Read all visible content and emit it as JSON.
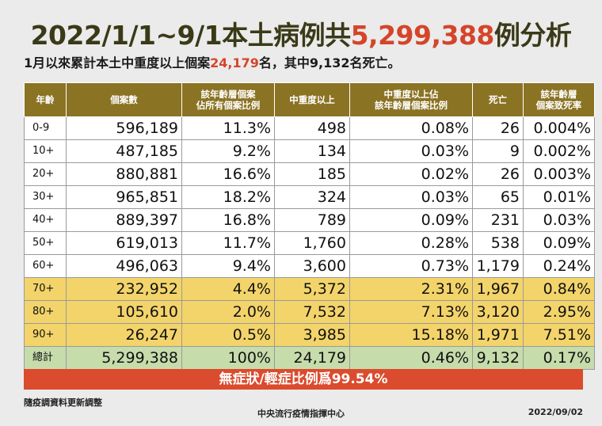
{
  "title": {
    "prefix": "2022/1/1~9/1本土病例共",
    "number": "5,299,388",
    "suffix": "例分析"
  },
  "subtitle": {
    "prefix": "1月以來累計本土中重度以上個案",
    "number": "24,179",
    "suffix": "名，其中9,132名死亡。"
  },
  "table": {
    "headers": [
      [
        "年齡"
      ],
      [
        "個案數"
      ],
      [
        "該年齡層個案",
        "佔所有個案比例"
      ],
      [
        "中重度以上"
      ],
      [
        "中重度以上佔",
        "該年齡層個案比例"
      ],
      [
        "死亡"
      ],
      [
        "該年齡層",
        "個案致死率"
      ]
    ],
    "rows": [
      {
        "style": "white",
        "cells": [
          "0-9",
          "596,189",
          "11.3%",
          "498",
          "0.08%",
          "26",
          "0.004%"
        ]
      },
      {
        "style": "white",
        "cells": [
          "10+",
          "487,185",
          "9.2%",
          "134",
          "0.03%",
          "9",
          "0.002%"
        ]
      },
      {
        "style": "white",
        "cells": [
          "20+",
          "880,881",
          "16.6%",
          "185",
          "0.02%",
          "26",
          "0.003%"
        ]
      },
      {
        "style": "white",
        "cells": [
          "30+",
          "965,851",
          "18.2%",
          "324",
          "0.03%",
          "65",
          "0.01%"
        ]
      },
      {
        "style": "white",
        "cells": [
          "40+",
          "889,397",
          "16.8%",
          "789",
          "0.09%",
          "231",
          "0.03%"
        ]
      },
      {
        "style": "white",
        "cells": [
          "50+",
          "619,013",
          "11.7%",
          "1,760",
          "0.28%",
          "538",
          "0.09%"
        ]
      },
      {
        "style": "white",
        "cells": [
          "60+",
          "496,063",
          "9.4%",
          "3,600",
          "0.73%",
          "1,179",
          "0.24%"
        ]
      },
      {
        "style": "yellow",
        "cells": [
          "70+",
          "232,952",
          "4.4%",
          "5,372",
          "2.31%",
          "1,967",
          "0.84%"
        ]
      },
      {
        "style": "yellow",
        "cells": [
          "80+",
          "105,610",
          "2.0%",
          "7,532",
          "7.13%",
          "3,120",
          "2.95%"
        ]
      },
      {
        "style": "yellow",
        "cells": [
          "90+",
          "26,247",
          "0.5%",
          "3,985",
          "15.18%",
          "1,971",
          "7.51%"
        ]
      },
      {
        "style": "total",
        "cells": [
          "總計",
          "5,299,388",
          "100%",
          "24,179",
          "0.46%",
          "9,132",
          "0.17%"
        ]
      }
    ]
  },
  "banner": "無症狀/輕症比例爲99.54%",
  "footer": {
    "note": "隨疫調資料更新調整",
    "org": "中央流行疫情指揮中心",
    "date": "2022/09/02"
  },
  "colors": {
    "header_bg": "#8b7324",
    "highlight": "#d4452a",
    "elderly_rows": "#f3d46b",
    "total_row": "#c6dcab",
    "banner": "#db4b2d"
  }
}
